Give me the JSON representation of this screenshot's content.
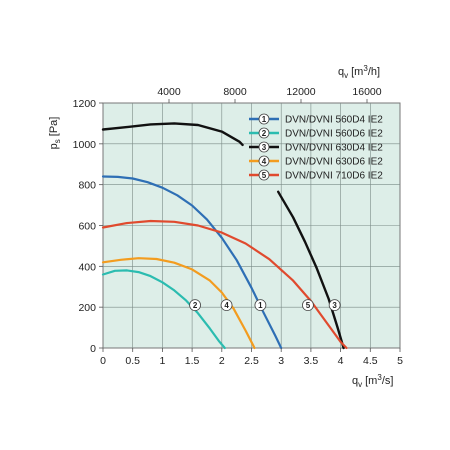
{
  "chart_data": {
    "type": "line",
    "xlabel": "q",
    "xlabel_sub": "v",
    "xunit_pre": "[m",
    "xunit_sup": "3",
    "xunit_post": "/s]",
    "ylabel": "p",
    "ylabel_sub": "s",
    "yunit": "[Pa]",
    "x2label": "q",
    "x2label_sub": "v",
    "x2unit_pre": "[m",
    "x2unit_sup": "3",
    "x2unit_post": "/h]",
    "xlim": [
      0,
      5
    ],
    "ylim": [
      0,
      1200
    ],
    "x2lim": [
      0,
      18000
    ],
    "xticks": [
      "0",
      "0.5",
      "1",
      "1.5",
      "2",
      "2.5",
      "3",
      "3.5",
      "4",
      "4.5",
      "5"
    ],
    "yticks": [
      "0",
      "200",
      "400",
      "600",
      "800",
      "1000",
      "1200"
    ],
    "x2ticks": [
      "4000",
      "8000",
      "12000",
      "16000"
    ],
    "grid": true,
    "legend_position": "top-right",
    "background_color": "#ddeee8",
    "series": [
      {
        "name": "DVN/DVNI 560D4 IE2",
        "marker": "1",
        "color": "#2e6fb5",
        "x": [
          0,
          0.25,
          0.5,
          0.75,
          1.0,
          1.25,
          1.5,
          1.75,
          2.0,
          2.25,
          2.5,
          2.7,
          2.9,
          3.0
        ],
        "y": [
          840,
          838,
          830,
          812,
          785,
          748,
          698,
          630,
          540,
          430,
          295,
          175,
          60,
          0
        ],
        "marker_x": 2.65,
        "marker_y": 210
      },
      {
        "name": "DVN/DVNI 560D6 IE2",
        "marker": "2",
        "color": "#2bbcb0",
        "x": [
          0,
          0.2,
          0.4,
          0.6,
          0.8,
          1.0,
          1.2,
          1.4,
          1.6,
          1.8,
          1.95,
          2.05
        ],
        "y": [
          360,
          378,
          380,
          372,
          352,
          322,
          282,
          232,
          170,
          95,
          35,
          0
        ],
        "marker_x": 1.55,
        "marker_y": 210
      },
      {
        "name": "DVN/DVNI 630D4 IE2",
        "marker": "3",
        "color": "#111111",
        "segments": [
          {
            "x": [
              0,
              0.4,
              0.8,
              1.2,
              1.6,
              2.0,
              2.3,
              2.35
            ],
            "y": [
              1070,
              1082,
              1095,
              1100,
              1092,
              1060,
              1010,
              995
            ]
          },
          {
            "x": [
              2.95,
              3.2,
              3.4,
              3.6,
              3.8,
              3.95,
              4.05
            ],
            "y": [
              765,
              640,
              520,
              390,
              240,
              100,
              0
            ]
          }
        ],
        "marker_x": 3.9,
        "marker_y": 210
      },
      {
        "name": "DVN/DVNI 630D6 IE2",
        "marker": "4",
        "color": "#f39c1f",
        "x": [
          0,
          0.3,
          0.6,
          0.9,
          1.2,
          1.5,
          1.8,
          2.0,
          2.2,
          2.4,
          2.55
        ],
        "y": [
          420,
          432,
          440,
          436,
          418,
          385,
          330,
          272,
          192,
          85,
          0
        ],
        "marker_x": 2.08,
        "marker_y": 210
      },
      {
        "name": "DVN/DVNI 710D6 IE2",
        "marker": "5",
        "color": "#e04a2e",
        "x": [
          0,
          0.4,
          0.8,
          1.2,
          1.6,
          2.0,
          2.4,
          2.8,
          3.2,
          3.5,
          3.8,
          4.0,
          4.1
        ],
        "y": [
          590,
          612,
          622,
          618,
          600,
          565,
          512,
          435,
          330,
          230,
          110,
          30,
          0
        ],
        "marker_x": 3.45,
        "marker_y": 210
      }
    ]
  }
}
